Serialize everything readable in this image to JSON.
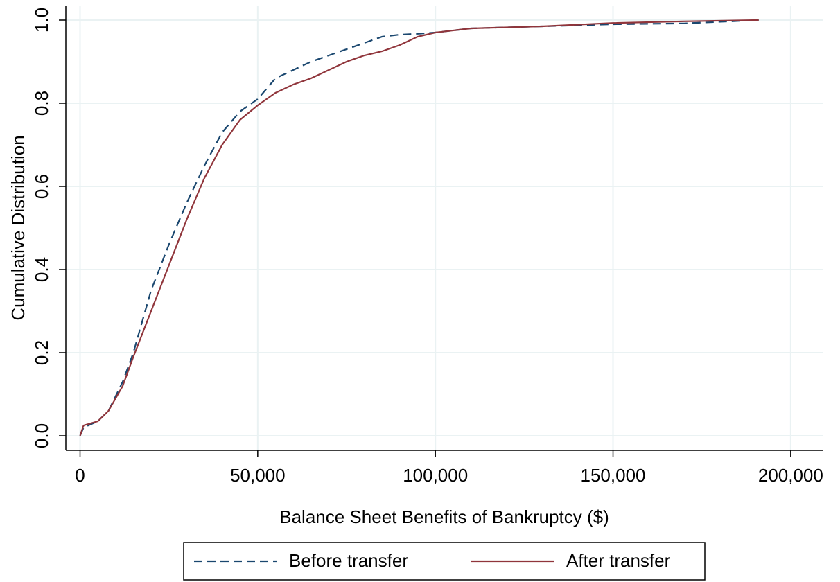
{
  "chart_data": {
    "type": "line",
    "x_label": "Balance Sheet Benefits of Bankruptcy ($)",
    "y_label": "Cumulative Distribution",
    "x": [
      0,
      1000,
      5000,
      8000,
      12000,
      15000,
      20000,
      25000,
      30000,
      35000,
      40000,
      45000,
      50000,
      55000,
      60000,
      65000,
      70000,
      75000,
      80000,
      85000,
      90000,
      95000,
      100000,
      110000,
      130000,
      150000,
      170000,
      191000
    ],
    "series": [
      {
        "name": "Before transfer",
        "color": "#1a476f",
        "dashed": true,
        "values": [
          0,
          0.02,
          0.035,
          0.06,
          0.13,
          0.2,
          0.35,
          0.46,
          0.56,
          0.65,
          0.73,
          0.78,
          0.81,
          0.86,
          0.88,
          0.9,
          0.915,
          0.93,
          0.945,
          0.96,
          0.965,
          0.967,
          0.97,
          0.98,
          0.985,
          0.99,
          0.992,
          1.0
        ]
      },
      {
        "name": "After transfer",
        "color": "#90353b",
        "dashed": false,
        "values": [
          0,
          0.025,
          0.035,
          0.06,
          0.12,
          0.19,
          0.3,
          0.41,
          0.52,
          0.62,
          0.7,
          0.76,
          0.795,
          0.825,
          0.845,
          0.86,
          0.88,
          0.9,
          0.915,
          0.925,
          0.94,
          0.96,
          0.97,
          0.98,
          0.985,
          0.993,
          0.997,
          1.0
        ]
      }
    ],
    "xlim": [
      -4000,
      209000
    ],
    "ylim": [
      -0.035,
      1.035
    ],
    "xticks": [
      0,
      {
        "value": 50000,
        "label": "50,000"
      },
      {
        "value": 100000,
        "label": "100,000"
      },
      {
        "value": 150000,
        "label": "150,000"
      },
      {
        "value": 200000,
        "label": "200,000"
      }
    ],
    "yticks": [
      {
        "value": 0,
        "label": "0.0"
      },
      0.2,
      0.4,
      0.6,
      0.8,
      {
        "value": 1,
        "label": "1.0"
      }
    ],
    "grid": true,
    "legend": "bottom"
  }
}
